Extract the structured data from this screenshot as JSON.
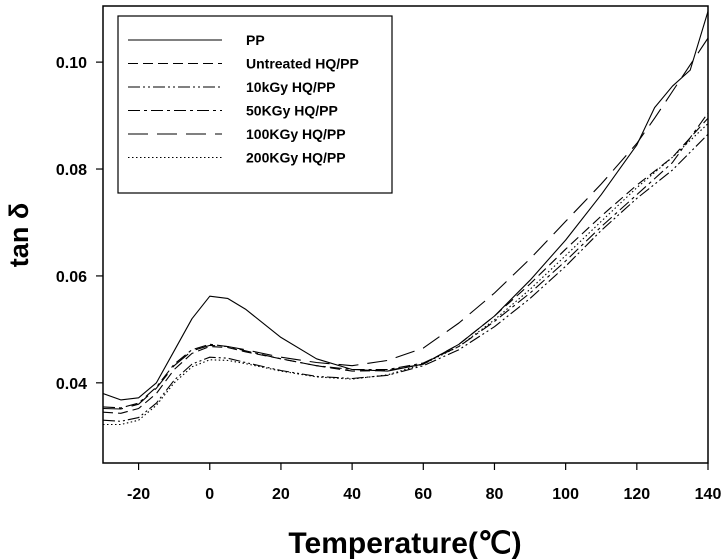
{
  "chart_data": {
    "type": "line",
    "xlabel": "Temperature(℃)",
    "ylabel": "tan δ",
    "xlim": [
      -30,
      140
    ],
    "ylim": [
      0.025,
      0.1105
    ],
    "xticks": [
      -20,
      0,
      20,
      40,
      60,
      80,
      100,
      120,
      140
    ],
    "xtick_labels": [
      "-20",
      "0",
      "20",
      "40",
      "60",
      "80",
      "100",
      "120",
      "140"
    ],
    "yticks": [
      0.04,
      0.06,
      0.08,
      0.1
    ],
    "ytick_labels": [
      "0.04",
      "0.06",
      "0.08",
      "0.10"
    ],
    "grid": false,
    "legend_position": "top-left",
    "series": [
      {
        "name": "PP",
        "dash": "solid",
        "x": [
          -30,
          -25,
          -20,
          -15,
          -10,
          -5,
          0,
          5,
          10,
          20,
          30,
          40,
          50,
          60,
          70,
          80,
          90,
          100,
          110,
          120,
          125,
          130,
          135,
          140
        ],
        "y": [
          0.038,
          0.0368,
          0.0372,
          0.04,
          0.046,
          0.052,
          0.0562,
          0.0558,
          0.0538,
          0.0485,
          0.0445,
          0.0425,
          0.0422,
          0.0435,
          0.0472,
          0.0525,
          0.0592,
          0.0667,
          0.0752,
          0.0845,
          0.0915,
          0.0955,
          0.0985,
          0.1095
        ]
      },
      {
        "name": "Untreated HQ/PP",
        "dash": "dashed-short",
        "x": [
          -30,
          -25,
          -20,
          -15,
          -10,
          -5,
          0,
          5,
          10,
          20,
          30,
          40,
          50,
          60,
          70,
          80,
          90,
          100,
          110,
          120,
          130,
          140
        ],
        "y": [
          0.0345,
          0.0343,
          0.0352,
          0.038,
          0.0425,
          0.0455,
          0.0468,
          0.0466,
          0.0458,
          0.0445,
          0.0432,
          0.0422,
          0.0423,
          0.0435,
          0.0472,
          0.0525,
          0.0585,
          0.065,
          0.0712,
          0.077,
          0.0822,
          0.0895
        ]
      },
      {
        "name": "10kGy HQ/PP",
        "dash": "dash-dot-dot",
        "x": [
          -30,
          -25,
          -20,
          -15,
          -10,
          -5,
          0,
          5,
          10,
          20,
          30,
          40,
          50,
          60,
          70,
          80,
          90,
          100,
          110,
          120,
          130,
          140
        ],
        "y": [
          0.033,
          0.0328,
          0.0335,
          0.0362,
          0.0405,
          0.0435,
          0.0448,
          0.0446,
          0.0438,
          0.0423,
          0.0412,
          0.0408,
          0.0414,
          0.0432,
          0.0462,
          0.0505,
          0.0558,
          0.0618,
          0.0685,
          0.0745,
          0.0798,
          0.0865
        ]
      },
      {
        "name": "50KGy HQ/PP",
        "dash": "dash-dot",
        "x": [
          -30,
          -25,
          -20,
          -15,
          -10,
          -5,
          0,
          5,
          10,
          20,
          30,
          40,
          50,
          60,
          70,
          80,
          90,
          100,
          110,
          120,
          130,
          140
        ],
        "y": [
          0.0355,
          0.0353,
          0.0362,
          0.0392,
          0.0435,
          0.0462,
          0.0472,
          0.0468,
          0.046,
          0.0445,
          0.0432,
          0.0425,
          0.0425,
          0.0437,
          0.0468,
          0.0515,
          0.0568,
          0.0628,
          0.0692,
          0.0752,
          0.0812,
          0.0905
        ]
      },
      {
        "name": "100KGy HQ/PP",
        "dash": "dashed-long",
        "x": [
          -30,
          -25,
          -20,
          -15,
          -10,
          -5,
          0,
          5,
          10,
          20,
          30,
          40,
          50,
          60,
          70,
          80,
          90,
          100,
          110,
          120,
          125,
          130,
          135,
          140
        ],
        "y": [
          0.0352,
          0.0351,
          0.036,
          0.039,
          0.0432,
          0.046,
          0.047,
          0.0468,
          0.0462,
          0.0448,
          0.0438,
          0.0432,
          0.0442,
          0.0465,
          0.0512,
          0.0568,
          0.0632,
          0.0702,
          0.0772,
          0.0848,
          0.0895,
          0.0945,
          0.0995,
          0.1045
        ]
      },
      {
        "name": "200KGy HQ/PP",
        "dash": "dotted",
        "x": [
          -30,
          -25,
          -20,
          -15,
          -10,
          -5,
          0,
          5,
          10,
          20,
          30,
          40,
          50,
          60,
          70,
          80,
          90,
          100,
          110,
          120,
          130,
          140
        ],
        "y": [
          0.0322,
          0.0322,
          0.033,
          0.0358,
          0.04,
          0.043,
          0.0443,
          0.0442,
          0.0436,
          0.0422,
          0.0411,
          0.0407,
          0.0415,
          0.0435,
          0.0468,
          0.0518,
          0.0575,
          0.0638,
          0.0702,
          0.0765,
          0.0822,
          0.0885
        ]
      }
    ]
  }
}
